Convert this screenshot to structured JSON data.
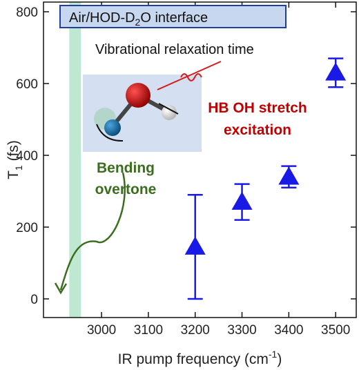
{
  "chart_data": {
    "type": "scatter",
    "box_label_parts": [
      "Air/HOD-D",
      "2",
      "O interface"
    ],
    "xlabel_parts": [
      "IR pump frequency (cm",
      "-1",
      ")"
    ],
    "ylabel_parts": [
      "T",
      "1",
      " (fs)"
    ],
    "annotations": [
      "Vibrational relaxation time",
      "HB OH stretch",
      "excitation",
      "Bending",
      "overtone"
    ],
    "x": [
      3200,
      3300,
      3400,
      3500
    ],
    "values": [
      145,
      270,
      340,
      630
    ],
    "errors": [
      145,
      50,
      30,
      40
    ],
    "color": "#1a1ae6",
    "marker": "triangle",
    "highlight_band": [
      2931,
      2956
    ],
    "highlight_color": "#bfe8d2",
    "xlim": [
      2876,
      3544
    ],
    "ylim": [
      -52,
      827
    ],
    "xticks": [
      3000,
      3100,
      3200,
      3300,
      3400,
      3500
    ],
    "yticks": [
      0,
      200,
      400,
      600,
      800
    ]
  }
}
